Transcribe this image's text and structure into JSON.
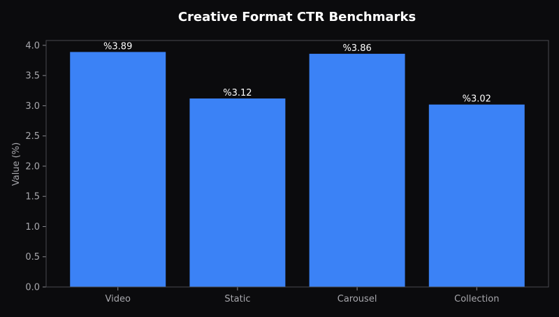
{
  "chart_data": {
    "type": "bar",
    "title": "Creative Format CTR Benchmarks",
    "xlabel": "",
    "ylabel": "Value (%)",
    "categories": [
      "Video",
      "Static",
      "Carousel",
      "Collection"
    ],
    "values": [
      3.89,
      3.12,
      3.86,
      3.02
    ],
    "data_labels": [
      "%3.89",
      "%3.12",
      "%3.86",
      "%3.02"
    ],
    "ylim": [
      0,
      4.08
    ],
    "yticks": [
      0.0,
      0.5,
      1.0,
      1.5,
      2.0,
      2.5,
      3.0,
      3.5,
      4.0
    ],
    "ytick_labels": [
      "0.0",
      "0.5",
      "1.0",
      "1.5",
      "2.0",
      "2.5",
      "3.0",
      "3.5",
      "4.0"
    ],
    "grid": false,
    "legend": "none",
    "colors": {
      "bar": "#3b82f6",
      "background": "#0b0b0d",
      "text": "#ffffff",
      "tick_text": "#a8a8ad"
    }
  }
}
